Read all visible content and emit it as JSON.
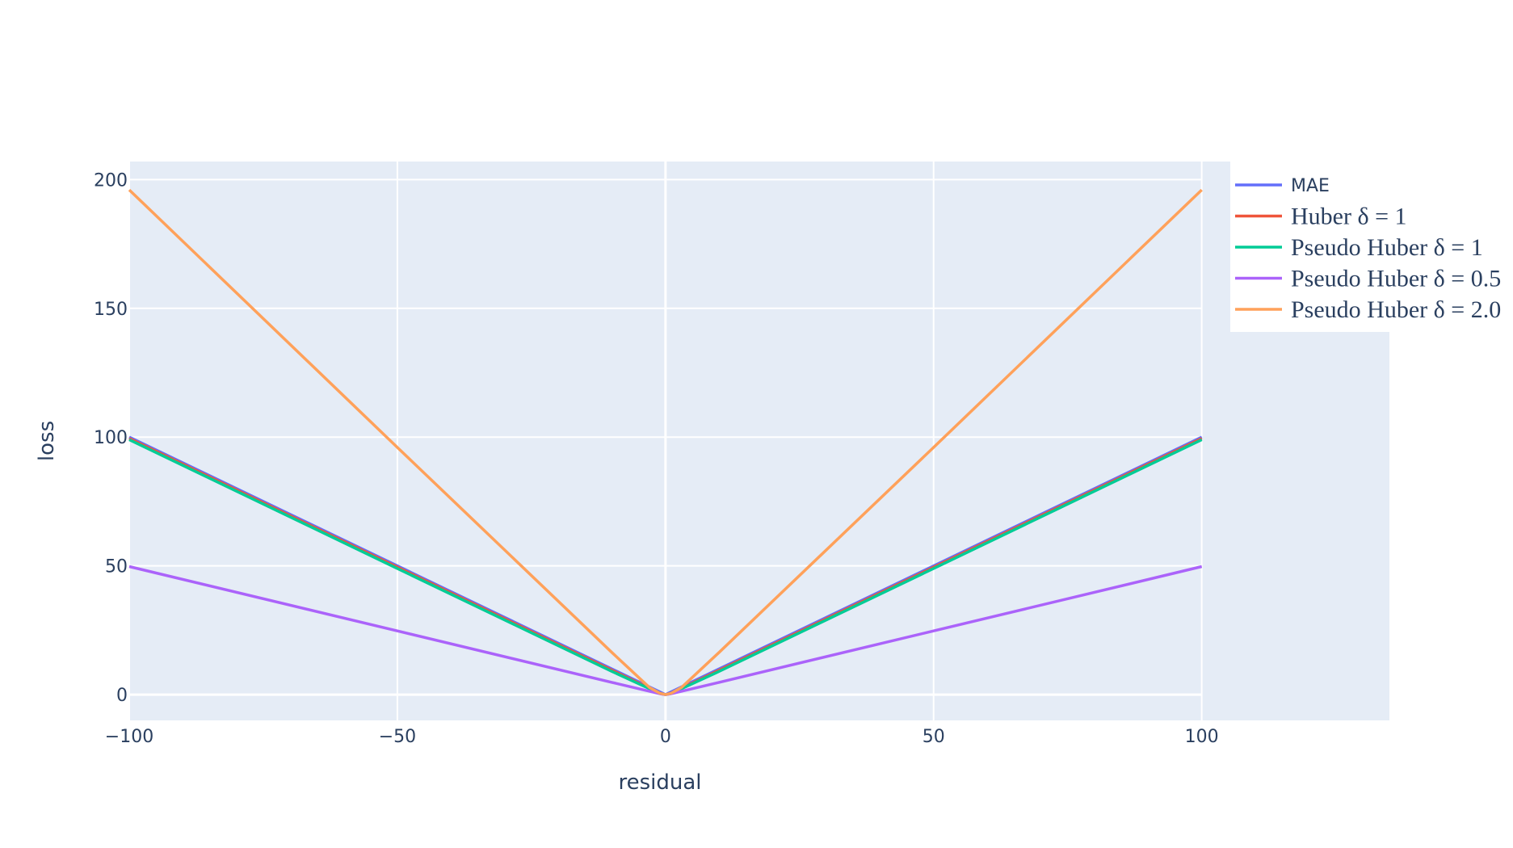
{
  "chart_data": {
    "type": "line",
    "title": "",
    "xlabel": "residual",
    "ylabel": "loss",
    "xlim": [
      -100,
      135
    ],
    "ylim": [
      -10,
      207
    ],
    "x_ticks": [
      -100,
      -50,
      0,
      50,
      100
    ],
    "x_tick_labels": [
      "−100",
      "−50",
      "0",
      "50",
      "100"
    ],
    "y_ticks": [
      0,
      50,
      100,
      150,
      200
    ],
    "y_tick_labels": [
      "0",
      "50",
      "100",
      "150",
      "200"
    ],
    "grid": true,
    "legend_position": "top-right",
    "plot_background": "#e5ecf6",
    "series": [
      {
        "name": "MAE",
        "math": false,
        "color": "#636efa",
        "x": [
          -100,
          0,
          100
        ],
        "y": [
          100,
          0,
          100
        ]
      },
      {
        "name": "Huber δ = 1",
        "math": true,
        "color": "#ef553b",
        "x": [
          -100,
          -1,
          0,
          1,
          100
        ],
        "y": [
          99.5,
          0.5,
          0,
          0.5,
          99.5
        ]
      },
      {
        "name": "Pseudo Huber δ = 1",
        "math": true,
        "color": "#00cc96",
        "x": [
          -100,
          -50,
          -10,
          -1,
          0,
          1,
          10,
          50,
          100
        ],
        "y": [
          99.0,
          49.0,
          9.05,
          0.41,
          0,
          0.41,
          9.05,
          49.0,
          99.0
        ]
      },
      {
        "name": "Pseudo Huber δ = 0.5",
        "math": true,
        "color": "#ab63fa",
        "x": [
          -100,
          -50,
          -10,
          -1,
          0,
          1,
          10,
          50,
          100
        ],
        "y": [
          49.75,
          24.75,
          4.76,
          0.31,
          0,
          0.31,
          4.76,
          24.75,
          49.75
        ]
      },
      {
        "name": "Pseudo Huber δ = 2.0",
        "math": true,
        "color": "#ffa15a",
        "x": [
          -100,
          -50,
          -10,
          -3,
          -1,
          0,
          1,
          3,
          10,
          50,
          100
        ],
        "y": [
          196.0,
          96.0,
          16.4,
          2.8,
          0.47,
          0,
          0.47,
          2.8,
          16.4,
          96.0,
          196.0
        ]
      }
    ]
  }
}
